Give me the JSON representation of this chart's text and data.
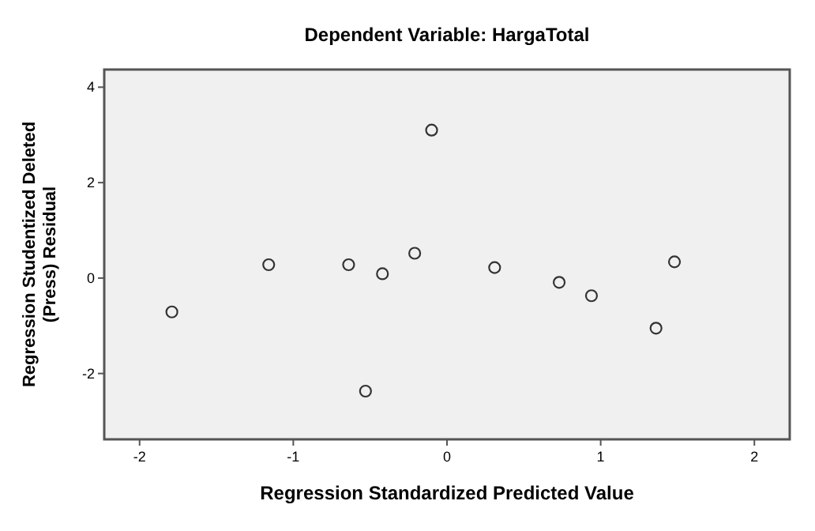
{
  "chart_data": {
    "type": "scatter",
    "title": "Dependent Variable: HargaTotal",
    "xlabel": "Regression Standardized Predicted Value",
    "ylabel": "Regression Studentized Deleted (Press) Residual",
    "x": [
      -1.79,
      -1.16,
      -0.64,
      -0.42,
      -0.21,
      -0.1,
      -0.53,
      0.31,
      0.73,
      0.94,
      1.36,
      1.48
    ],
    "values": [
      -0.71,
      0.28,
      0.28,
      0.09,
      0.52,
      3.1,
      -2.37,
      0.22,
      -0.09,
      -0.37,
      -1.05,
      0.34
    ],
    "color": "#333333",
    "marker": "circle",
    "xlim": [
      -2.23,
      2.23
    ],
    "ylim": [
      -3.38,
      4.37
    ],
    "xticks": [
      -2,
      -1,
      0,
      1,
      2
    ],
    "yticks": [
      -2,
      0,
      2,
      4
    ],
    "grid": false
  }
}
